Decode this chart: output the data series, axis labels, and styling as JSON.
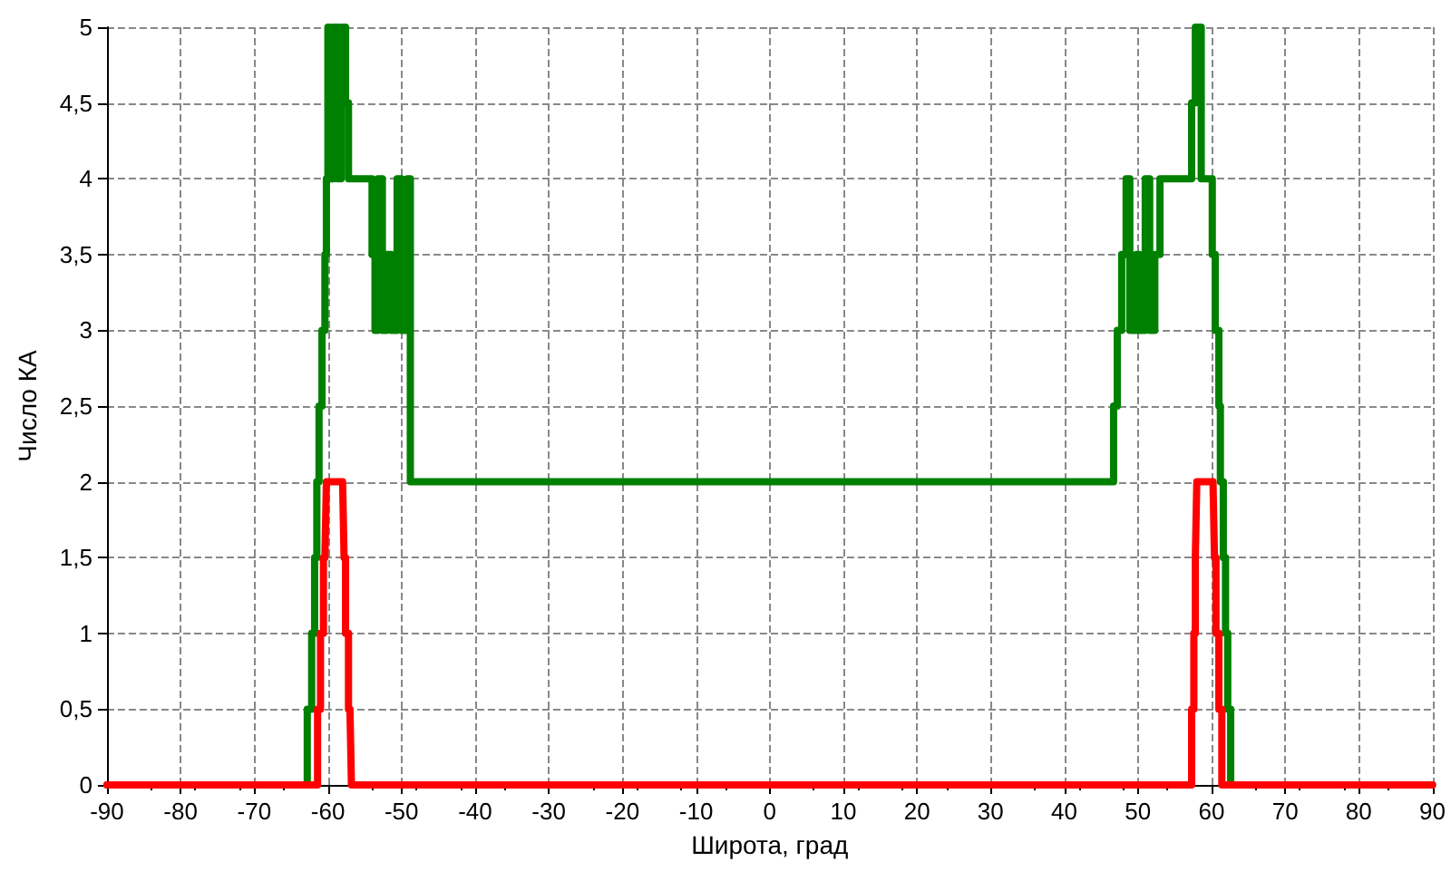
{
  "chart_data": {
    "type": "line",
    "xlabel": "Широта, град",
    "ylabel": "Число КА",
    "xlim": [
      -90,
      90
    ],
    "xticks": [
      -90,
      -80,
      -70,
      -60,
      -50,
      -40,
      -30,
      -20,
      -10,
      0,
      10,
      20,
      30,
      40,
      50,
      60,
      70,
      80,
      90
    ],
    "ylim": [
      0,
      5
    ],
    "yticks": [
      0,
      {
        "value": 0.5,
        "label": "0,5"
      },
      1,
      {
        "value": 1.5,
        "label": "1,5"
      },
      2,
      {
        "value": 2.5,
        "label": "2,5"
      },
      3,
      {
        "value": 3.5,
        "label": "3,5"
      },
      4,
      {
        "value": 4.5,
        "label": "4,5"
      },
      5
    ],
    "grid": true,
    "marker": "none",
    "line_style": "solid",
    "series": [
      {
        "color": "#008000",
        "x": [
          -90,
          -62.8,
          -62.8,
          -62.2,
          -62.2,
          -61.8,
          -61.8,
          -61.5,
          -61.5,
          -61.2,
          -61.2,
          -60.8,
          -60.8,
          -60.4,
          -60.4,
          -60.2,
          -60.2,
          -60,
          -60,
          -59.6,
          -59.6,
          -59.2,
          -59.2,
          -58.6,
          -58.6,
          -58.2,
          -58.2,
          -57.6,
          -57.6,
          -57.2,
          -57.2,
          -54,
          -54,
          -53.6,
          -53.6,
          -53.2,
          -53.2,
          -52.6,
          -52.6,
          -52,
          -52,
          -51.4,
          -51.4,
          -50.6,
          -50.6,
          -50,
          -50,
          -49.2,
          -49.2,
          -48.8,
          -48.8,
          46.7,
          46.7,
          47.2,
          47.2,
          47.8,
          47.8,
          48.4,
          48.4,
          48.9,
          48.9,
          49.8,
          49.8,
          50.2,
          50.2,
          51,
          51,
          51.6,
          51.6,
          52.3,
          52.3,
          53,
          53,
          57.3,
          57.3,
          57.8,
          57.8,
          58.6,
          58.6,
          60.1,
          60.1,
          60.5,
          60.5,
          61,
          61,
          61.2,
          61.2,
          61.6,
          61.6,
          61.9,
          61.9,
          62.2,
          62.2,
          62.6,
          62.6,
          90
        ],
        "values": [
          0,
          0,
          0.5,
          0.5,
          1,
          1,
          1.5,
          1.5,
          2,
          2,
          2.5,
          2.5,
          3,
          3,
          3.5,
          3.5,
          4,
          4,
          5,
          5,
          4,
          4,
          5,
          5,
          4,
          4,
          5,
          5,
          4.5,
          4.5,
          4,
          4,
          3.5,
          3.5,
          3,
          3,
          4,
          4,
          3,
          3,
          3.5,
          3.5,
          3,
          3,
          4,
          4,
          3,
          3,
          4,
          4,
          2,
          2,
          2.5,
          2.5,
          3,
          3,
          3.5,
          3.5,
          4,
          4,
          3,
          3,
          3.5,
          3.5,
          3,
          3,
          4,
          4,
          3,
          3,
          3.5,
          3.5,
          4,
          4,
          4.5,
          4.5,
          5,
          5,
          4,
          4,
          3.5,
          3.5,
          3,
          3,
          2.5,
          2.5,
          2,
          2,
          1.5,
          1.5,
          1,
          1,
          0.5,
          0.5,
          0,
          0
        ]
      },
      {
        "color": "#ff0000",
        "x": [
          -90,
          -61.4,
          -61.4,
          -61,
          -61,
          -60.6,
          -60.6,
          -60.4,
          -60.2,
          -58,
          -57.8,
          -57.6,
          -57.6,
          -57.2,
          -57.2,
          -57,
          -56.8,
          57.3,
          57.3,
          57.6,
          57.6,
          57.8,
          57.8,
          58,
          60.2,
          60.4,
          60.6,
          60.6,
          61,
          61,
          61.4,
          61.4,
          90
        ],
        "values": [
          0,
          0,
          0.5,
          0.5,
          1,
          1,
          1.5,
          1.5,
          2,
          2,
          1.5,
          1.5,
          1,
          1,
          0.5,
          0.5,
          0,
          0,
          0.5,
          0.5,
          1,
          1,
          1.5,
          2,
          2,
          1.5,
          1.5,
          1,
          1,
          0.5,
          0.5,
          0,
          0
        ]
      }
    ]
  }
}
